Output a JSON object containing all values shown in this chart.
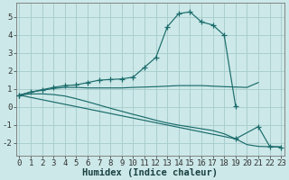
{
  "xlabel": "Humidex (Indice chaleur)",
  "xlim": [
    -0.3,
    23.3
  ],
  "ylim": [
    -2.7,
    5.8
  ],
  "bg_color": "#cce8e8",
  "grid_color": "#aacece",
  "line_color": "#1a6b6b",
  "curve1_x": [
    0,
    1,
    2,
    3,
    4,
    5,
    6,
    7,
    8,
    9,
    10,
    11,
    12,
    13,
    14,
    15,
    16,
    17,
    18,
    19
  ],
  "curve1_y": [
    0.65,
    0.82,
    0.95,
    1.08,
    1.18,
    1.22,
    1.35,
    1.48,
    1.52,
    1.55,
    1.65,
    2.2,
    2.75,
    4.45,
    5.18,
    5.28,
    4.72,
    4.55,
    3.98,
    0.05
  ],
  "curve2_x": [
    0,
    1,
    2,
    3,
    4,
    5,
    6,
    7,
    8,
    9,
    10,
    11,
    12,
    13,
    14,
    15,
    16,
    17,
    18,
    19,
    20,
    21
  ],
  "curve2_y": [
    0.65,
    0.82,
    0.92,
    1.02,
    1.08,
    1.08,
    1.05,
    1.05,
    1.05,
    1.05,
    1.08,
    1.1,
    1.12,
    1.15,
    1.18,
    1.18,
    1.18,
    1.15,
    1.12,
    1.1,
    1.08,
    1.35
  ],
  "curve3_x": [
    0,
    1,
    2,
    3,
    4,
    5,
    6,
    7,
    8,
    9,
    10,
    11,
    12,
    13,
    14,
    15,
    16,
    17,
    18,
    19,
    20,
    21,
    22,
    23
  ],
  "curve3_y": [
    0.65,
    0.72,
    0.72,
    0.68,
    0.6,
    0.45,
    0.28,
    0.1,
    -0.08,
    -0.25,
    -0.42,
    -0.58,
    -0.75,
    -0.9,
    -1.02,
    -1.12,
    -1.22,
    -1.32,
    -1.5,
    -1.78,
    -2.1,
    -2.2,
    -2.22,
    -2.22
  ],
  "curve4_x": [
    0,
    19,
    21,
    22,
    23
  ],
  "curve4_y": [
    0.65,
    -1.78,
    -1.1,
    -2.2,
    -2.25
  ],
  "xticks": [
    0,
    1,
    2,
    3,
    4,
    5,
    6,
    7,
    8,
    9,
    10,
    11,
    12,
    13,
    14,
    15,
    16,
    17,
    18,
    19,
    20,
    21,
    22,
    23
  ],
  "yticks": [
    -2,
    -1,
    0,
    1,
    2,
    3,
    4,
    5
  ],
  "tick_fontsize": 6.5,
  "label_fontsize": 7.5
}
